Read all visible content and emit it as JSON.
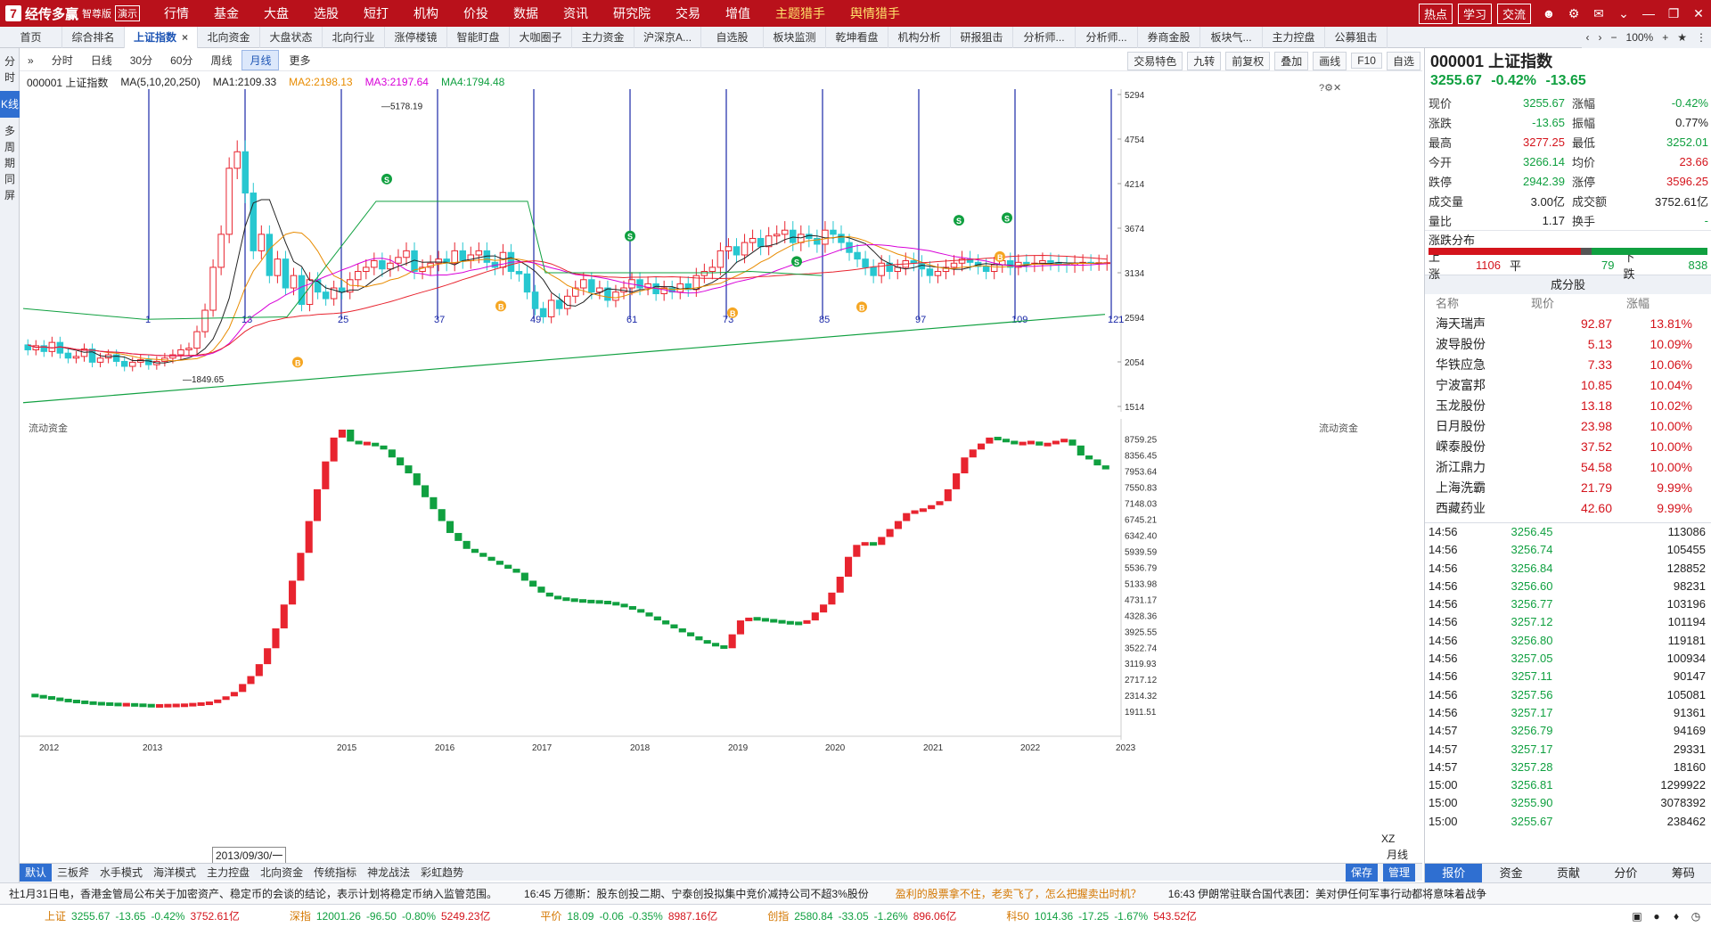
{
  "app": {
    "logo_mark": "7",
    "name": "经传多赢",
    "edition": "智尊版",
    "demo": "演示"
  },
  "menu": [
    "行情",
    "基金",
    "大盘",
    "选股",
    "短打",
    "机构",
    "价投",
    "数据",
    "资讯",
    "研究院",
    "交易",
    "增值",
    "主题猎手",
    "舆情猎手"
  ],
  "menu_highlight": [
    "主题猎手",
    "舆情猎手"
  ],
  "top_buttons": [
    "热点",
    "学习",
    "交流"
  ],
  "tabs": [
    "首页",
    "综合排名",
    "上证指数",
    "北向资金",
    "大盘状态",
    "北向行业",
    "涨停楼镜",
    "智能盯盘",
    "大咖圈子",
    "主力资金",
    "沪深京A...",
    "自选股",
    "板块监测",
    "乾坤看盘",
    "机构分析",
    "研报狙击",
    "分析师...",
    "分析师...",
    "券商金股",
    "板块气...",
    "主力控盘",
    "公募狙击"
  ],
  "active_tab": "上证指数",
  "zoom": "100%",
  "vstrip": [
    "分时",
    "K线",
    "多周期同屏"
  ],
  "period_buttons": [
    "分时",
    "日线",
    "30分",
    "60分",
    "周线",
    "月线",
    "更多"
  ],
  "active_period": "月线",
  "chart_tools": [
    "交易特色",
    "九转",
    "前复权",
    "叠加",
    "画线",
    "F10",
    "自选"
  ],
  "ma": {
    "code": "000001 上证指数",
    "param": "MA(5,10,20,250)",
    "ma1": "MA1:2109.33",
    "ma2": "MA2:2198.13",
    "ma3": "MA3:2197.64",
    "ma4": "MA4:1794.48"
  },
  "chart_data": [
    {
      "type": "line",
      "title": "000001 上证指数",
      "y_ticks": [
        "5294",
        "4754",
        "4214",
        "3674",
        "3134",
        "2594",
        "2054",
        "1514"
      ],
      "x_ticks": [
        "1",
        "13",
        "25",
        "37",
        "49",
        "61",
        "73",
        "85",
        "97",
        "109",
        "121"
      ],
      "annotations": [
        "5178.19",
        "1849.65"
      ],
      "signals": [
        "B",
        "S"
      ],
      "ylim": [
        1514,
        5294
      ]
    },
    {
      "type": "bar",
      "title": "流动资金",
      "y_ticks": [
        "8759.25",
        "8356.45",
        "7953.64",
        "7550.83",
        "7148.03",
        "6745.21",
        "6342.40",
        "5939.59",
        "5536.79",
        "5133.98",
        "4731.17",
        "4328.36",
        "3925.55",
        "3522.74",
        "3119.93",
        "2717.12",
        "2314.32",
        "1911.51"
      ],
      "x_labels": [
        "2012",
        "2013",
        "2013/09/30/一",
        "2015",
        "2016",
        "2017",
        "2018",
        "2019",
        "2020",
        "2021",
        "2022",
        "2023"
      ],
      "ylim": [
        1600,
        9000
      ]
    }
  ],
  "labels": {
    "flow": "流动资金",
    "flow_right": "流动资金",
    "date_tip": "2013/09/30/一",
    "xz": "XZ",
    "hour": "月线"
  },
  "indicator_tabs": [
    "默认",
    "三板斧",
    "水手模式",
    "海洋模式",
    "主力控盘",
    "北向资金",
    "传统指标",
    "神龙战法",
    "彩虹趋势"
  ],
  "indicator_right": [
    "保存",
    "管理"
  ],
  "ticker": [
    "社1月31日电，香港金管局公布关于加密资产、稳定币的会谈的结论，表示计划将稳定币纳入监管范围。",
    "16:45 万德斯：股东创投二期、宁泰创投拟集中竞价减持公司不超3%股份",
    "盈利的股票拿不住，老卖飞了，怎么把握卖出时机？",
    "16:43 伊朗常驻联合国代表团：美对伊任何军事行动都将意味着战争"
  ],
  "status": [
    {
      "name": "上证",
      "val": "3255.67",
      "chg": "-13.65",
      "pct": "-0.42%",
      "amt": "3752.61亿"
    },
    {
      "name": "深指",
      "val": "12001.26",
      "chg": "-96.50",
      "pct": "-0.80%",
      "amt": "5249.23亿"
    },
    {
      "name": "平价",
      "val": "18.09",
      "chg": "-0.06",
      "pct": "-0.35%",
      "amt": "8987.16亿"
    },
    {
      "name": "创指",
      "val": "2580.84",
      "chg": "-33.05",
      "pct": "-1.26%",
      "amt": "896.06亿"
    },
    {
      "name": "科50",
      "val": "1014.36",
      "chg": "-17.25",
      "pct": "-1.67%",
      "amt": "543.52亿"
    }
  ],
  "quote": {
    "title": "000001 上证指数",
    "price": "3255.67",
    "pct": "-0.42%",
    "chg": "-13.65",
    "rows": [
      [
        "现价",
        "3255.67",
        "涨幅",
        "-0.42%"
      ],
      [
        "涨跌",
        "-13.65",
        "振幅",
        "0.77%"
      ],
      [
        "最高",
        "3277.25",
        "最低",
        "3252.01"
      ],
      [
        "今开",
        "3266.14",
        "均价",
        "23.66"
      ],
      [
        "跌停",
        "2942.39",
        "涨停",
        "3596.25"
      ],
      [
        "成交量",
        "3.00亿",
        "成交额",
        "3752.61亿"
      ],
      [
        "量比",
        "1.17",
        "换手",
        "-"
      ]
    ],
    "dist_label": "涨跌分布",
    "up_label": "上涨",
    "up": "1106",
    "flat_label": "平",
    "flat": "79",
    "down_label": "下跌",
    "down": "838"
  },
  "components": {
    "header": "成分股",
    "cols": [
      "名称",
      "现价",
      "涨幅"
    ],
    "rows": [
      [
        "海天瑞声",
        "92.87",
        "13.81%"
      ],
      [
        "波导股份",
        "5.13",
        "10.09%"
      ],
      [
        "华铁应急",
        "7.33",
        "10.06%"
      ],
      [
        "宁波富邦",
        "10.85",
        "10.04%"
      ],
      [
        "玉龙股份",
        "13.18",
        "10.02%"
      ],
      [
        "日月股份",
        "23.98",
        "10.00%"
      ],
      [
        "嵘泰股份",
        "37.52",
        "10.00%"
      ],
      [
        "浙江鼎力",
        "54.58",
        "10.00%"
      ],
      [
        "上海洗霸",
        "21.79",
        "9.99%"
      ],
      [
        "西藏药业",
        "42.60",
        "9.99%"
      ]
    ]
  },
  "ticks": [
    [
      "14:56",
      "3256.45",
      "113086"
    ],
    [
      "14:56",
      "3256.74",
      "105455"
    ],
    [
      "14:56",
      "3256.84",
      "128852"
    ],
    [
      "14:56",
      "3256.60",
      "98231"
    ],
    [
      "14:56",
      "3256.77",
      "103196"
    ],
    [
      "14:56",
      "3257.12",
      "101194"
    ],
    [
      "14:56",
      "3256.80",
      "119181"
    ],
    [
      "14:56",
      "3257.05",
      "100934"
    ],
    [
      "14:56",
      "3257.11",
      "90147"
    ],
    [
      "14:56",
      "3257.56",
      "105081"
    ],
    [
      "14:56",
      "3257.17",
      "91361"
    ],
    [
      "14:57",
      "3256.79",
      "94169"
    ],
    [
      "14:57",
      "3257.17",
      "29331"
    ],
    [
      "14:57",
      "3257.28",
      "18160"
    ],
    [
      "15:00",
      "3256.81",
      "1299922"
    ],
    [
      "15:00",
      "3255.90",
      "3078392"
    ],
    [
      "15:00",
      "3255.67",
      "238462"
    ]
  ],
  "right_tabs": [
    "报价",
    "资金",
    "贡献",
    "分价",
    "筹码"
  ],
  "active_right_tab": "报价"
}
